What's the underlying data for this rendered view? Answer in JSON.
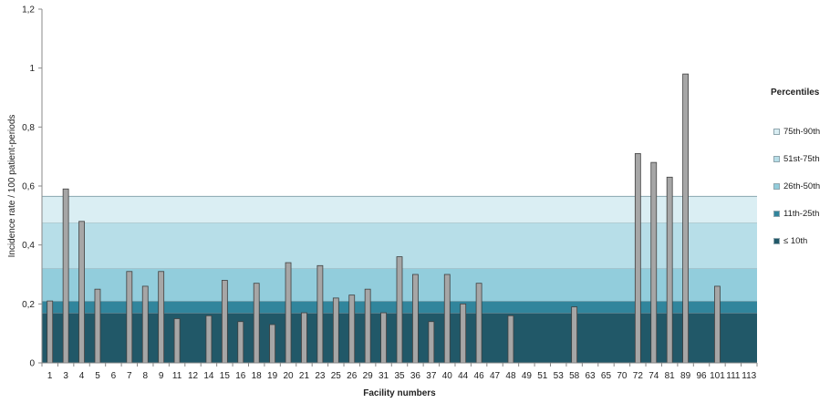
{
  "chart_data": {
    "type": "bar",
    "xlabel": "Facility numbers",
    "ylabel": "Incidence rate / 100 patient-periods",
    "ylim": [
      0,
      1.2
    ],
    "yticks": [
      "0",
      "0,2",
      "0,4",
      "0,6",
      "0,8",
      "1",
      "1,2"
    ],
    "categories": [
      "1",
      "3",
      "4",
      "5",
      "6",
      "7",
      "8",
      "9",
      "11",
      "12",
      "14",
      "15",
      "16",
      "18",
      "19",
      "20",
      "21",
      "23",
      "25",
      "26",
      "29",
      "31",
      "35",
      "36",
      "37",
      "40",
      "44",
      "46",
      "47",
      "48",
      "49",
      "51",
      "53",
      "58",
      "63",
      "65",
      "70",
      "72",
      "74",
      "81",
      "89",
      "96",
      "101",
      "111",
      "113"
    ],
    "values": [
      0.21,
      0.59,
      0.48,
      0.25,
      0,
      0.31,
      0.26,
      0.31,
      0.15,
      0,
      0.16,
      0.28,
      0.14,
      0.27,
      0.13,
      0.34,
      0.17,
      0.33,
      0.22,
      0.23,
      0.25,
      0.17,
      0.36,
      0.3,
      0.14,
      0.3,
      0.2,
      0.27,
      0,
      0.16,
      0,
      0,
      0,
      0.19,
      0,
      0,
      0,
      0.71,
      0.68,
      0.63,
      0.98,
      0,
      0.26,
      0,
      0
    ],
    "bands": [
      {
        "label": "≤ 10th",
        "from": 0,
        "to": 0.17,
        "color": "#215868"
      },
      {
        "label": "11th-25th",
        "from": 0.17,
        "to": 0.21,
        "color": "#31859c"
      },
      {
        "label": "26th-50th",
        "from": 0.21,
        "to": 0.32,
        "color": "#92cddc"
      },
      {
        "label": "51st-75th",
        "from": 0.32,
        "to": 0.475,
        "color": "#b7dee8"
      },
      {
        "label": "75th-90th",
        "from": 0.475,
        "to": 0.565,
        "color": "#daeef3"
      }
    ],
    "bar_color": "#a6a6a6",
    "bar_edge_color": "#404040"
  },
  "legend": {
    "title": "Percentiles",
    "items": [
      {
        "label": "75th-90th",
        "color": "#daeef3"
      },
      {
        "label": "51st-75th",
        "color": "#b7dee8"
      },
      {
        "label": "26th-50th",
        "color": "#92cddc"
      },
      {
        "label": "11th-25th",
        "color": "#31859c"
      },
      {
        "label": "≤ 10th",
        "color": "#215868"
      }
    ]
  }
}
